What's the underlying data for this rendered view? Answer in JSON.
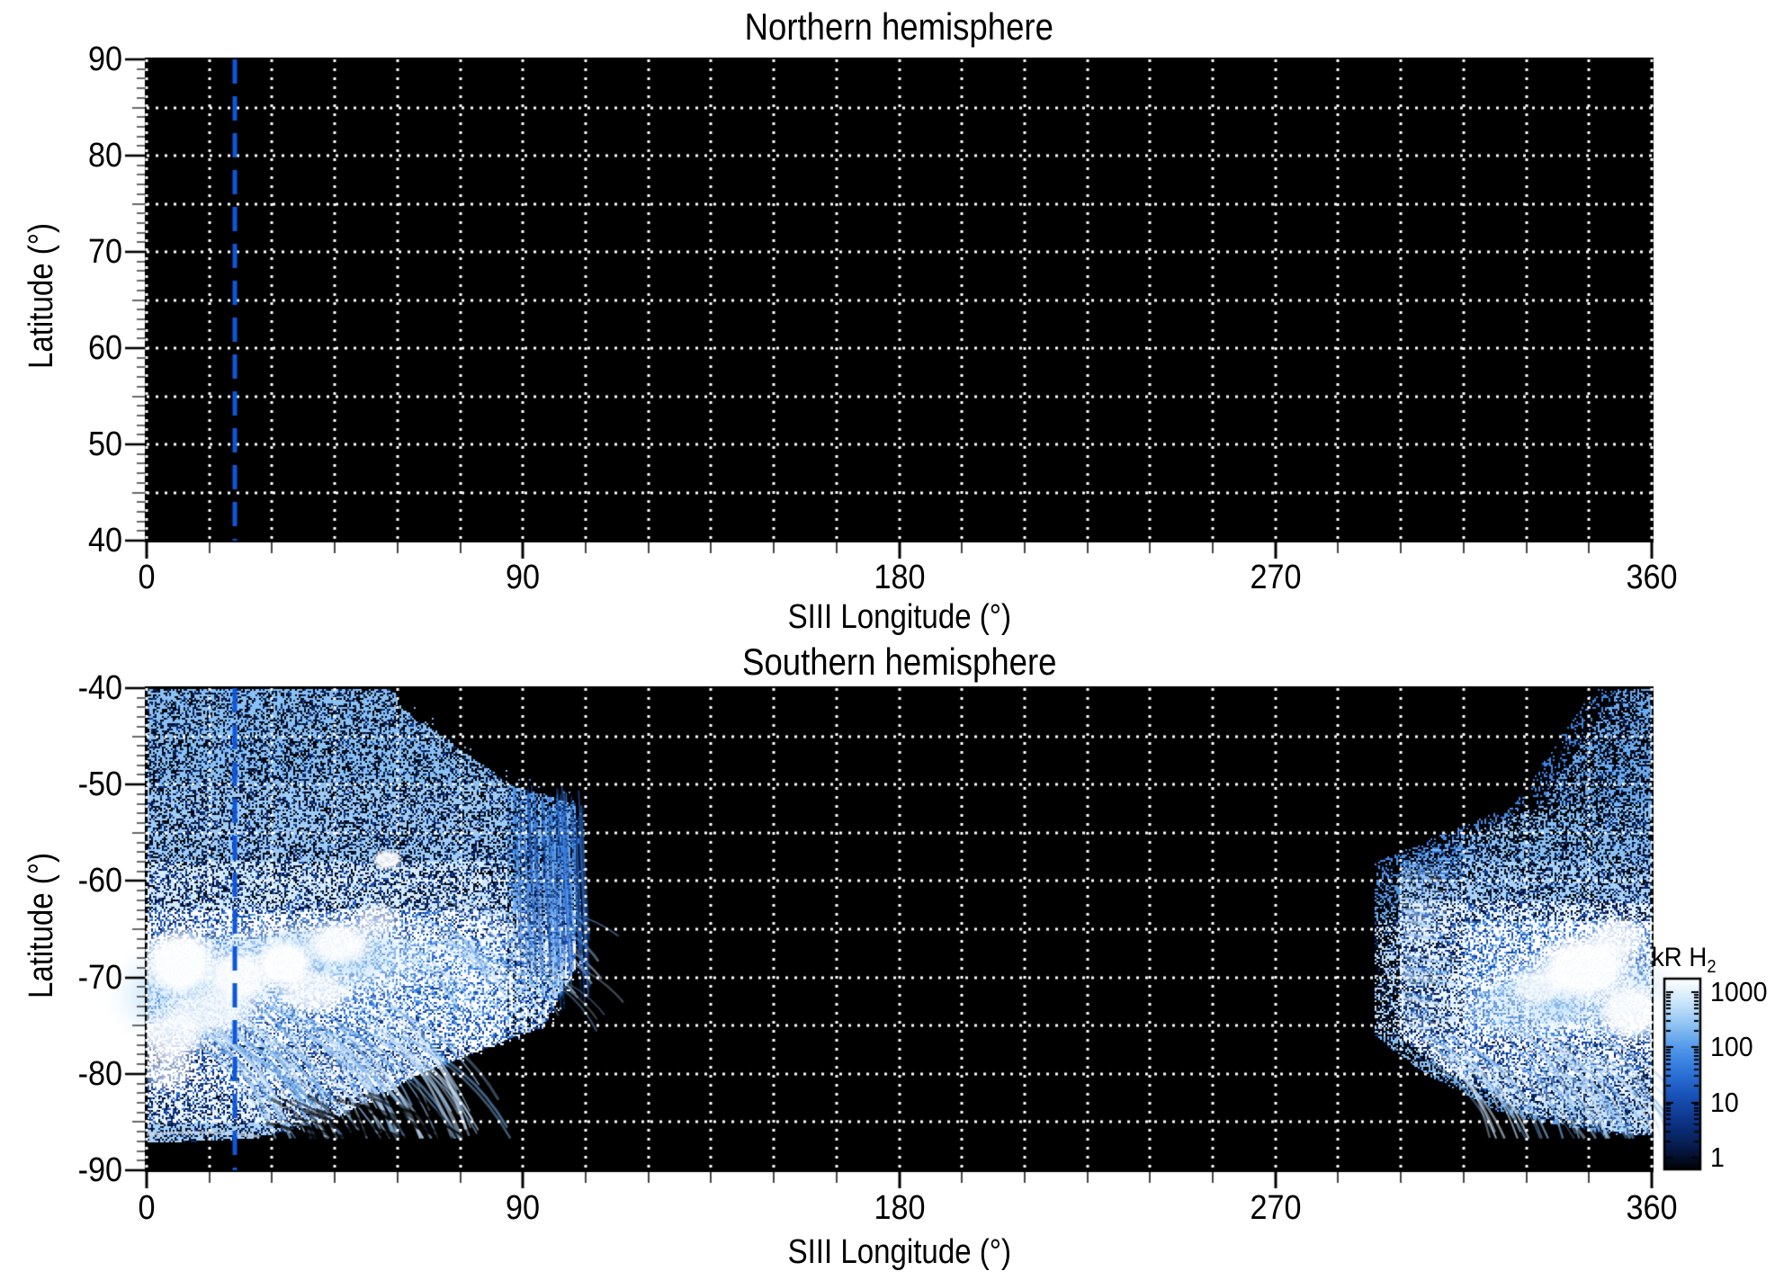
{
  "chart_data": {
    "type": "heatmap",
    "panels": [
      {
        "id": "north",
        "title": "Northern hemisphere",
        "ylabel": "Latitude (°)",
        "xlabel": "SIII Longitude (°)",
        "lat_min": 40,
        "lat_max": 90,
        "yticks": [
          90,
          80,
          70,
          60,
          50,
          40
        ],
        "xticks": [
          0,
          90,
          180,
          270,
          360
        ],
        "has_data": false
      },
      {
        "id": "south",
        "title": "Southern hemisphere",
        "ylabel": "Latitude (°)",
        "xlabel": "SIII Longitude (°)",
        "lat_min": -90,
        "lat_max": -40,
        "yticks": [
          -40,
          -50,
          -60,
          -70,
          -80,
          -90
        ],
        "xticks": [
          0,
          90,
          180,
          270,
          360
        ],
        "has_data": true
      }
    ],
    "lon_min": 0,
    "lon_max": 360,
    "grid": {
      "x_step_deg": 15,
      "y_step_deg": 5,
      "color": "#ffffff",
      "style": "dotted"
    },
    "marker_line": {
      "lon": 21,
      "color": "#0d57d9",
      "style": "dashed"
    },
    "colorbar": {
      "label": "kR H",
      "label_sub": "2",
      "tick_values": [
        1000,
        100,
        10,
        1
      ],
      "scale": "log",
      "top_value": 1000,
      "bottom_value": 1
    },
    "colormap": [
      [
        0.0,
        "#000104"
      ],
      [
        0.12,
        "#061c4e"
      ],
      [
        0.25,
        "#0d3487"
      ],
      [
        0.4,
        "#1a55bb"
      ],
      [
        0.52,
        "#2f76dc"
      ],
      [
        0.64,
        "#5399e9"
      ],
      [
        0.76,
        "#8fc3f3"
      ],
      [
        0.87,
        "#c9e5fb"
      ],
      [
        1.0,
        "#ffffff"
      ]
    ],
    "aurora": {
      "left": {
        "top_edge": [
          [
            0,
            40
          ],
          [
            58,
            40
          ],
          [
            88,
            49
          ],
          [
            105,
            51
          ]
        ],
        "lon_max_by_al": [
          [
            40,
            104.5
          ],
          [
            69,
            104.5
          ],
          [
            75,
            96.7
          ],
          [
            80,
            66.7
          ],
          [
            84.5,
            46.9
          ],
          [
            86.5,
            28.9
          ],
          [
            87,
            11
          ]
        ],
        "al_max": 87,
        "bands": [
          [
            40,
            50,
            0.3
          ],
          [
            50,
            58,
            0.34
          ],
          [
            58,
            63,
            0.45
          ],
          [
            63,
            66,
            0.65
          ],
          [
            66,
            74,
            0.82
          ],
          [
            74,
            77,
            0.72
          ],
          [
            77,
            82,
            0.6
          ],
          [
            82,
            85,
            0.5
          ],
          [
            85,
            87,
            0.36
          ]
        ],
        "glows": [
          [
            30,
            69,
            40,
            5,
            0.45
          ],
          [
            10,
            72,
            22,
            6,
            0.5
          ],
          [
            45,
            67,
            25,
            4,
            0.4
          ]
        ],
        "white_cores": [
          [
            8,
            68.5,
            10,
            4,
            0.95
          ],
          [
            22,
            70,
            9,
            3.2,
            0.9
          ],
          [
            33,
            68.5,
            8,
            3,
            0.95
          ],
          [
            46,
            66.5,
            9,
            2.6,
            0.9
          ],
          [
            57.5,
            57.8,
            4,
            1.2,
            0.9
          ],
          [
            15,
            73.5,
            12,
            2.5,
            0.7
          ],
          [
            40,
            71.5,
            10,
            2.5,
            0.75
          ],
          [
            6,
            76,
            9,
            3,
            0.8
          ],
          [
            5,
            79.5,
            7,
            2.5,
            0.55
          ],
          [
            55,
            64,
            6,
            2,
            0.6
          ]
        ],
        "bottom_arc": {
          "lon0": 0,
          "lon1": 27,
          "al": 86.3
        }
      },
      "right": {
        "lon_min_by_al": [
          [
            40,
            352
          ],
          [
            52,
            333
          ],
          [
            58,
            299.5
          ],
          [
            76,
            299.5
          ],
          [
            80,
            312
          ],
          [
            84,
            330
          ],
          [
            86.3,
            355
          ]
        ],
        "al_max": 86.3,
        "bands": [
          [
            40,
            52,
            0.24
          ],
          [
            52,
            58,
            0.3
          ],
          [
            58,
            62,
            0.36
          ],
          [
            62,
            64,
            0.5
          ],
          [
            64,
            76,
            0.8
          ],
          [
            76,
            80,
            0.6
          ],
          [
            80,
            83,
            0.5
          ],
          [
            83,
            86.3,
            0.42
          ]
        ],
        "streaky_left_of_lon": 315,
        "glows": [
          [
            345,
            71,
            25,
            5,
            0.5
          ],
          [
            330,
            73,
            18,
            4,
            0.4
          ]
        ],
        "white_cores": [
          [
            344,
            69,
            13,
            4,
            0.95
          ],
          [
            355,
            73.5,
            9,
            3.5,
            0.9
          ],
          [
            333,
            71,
            7,
            2.2,
            0.7
          ],
          [
            352,
            66,
            8,
            2.5,
            0.8
          ]
        ]
      }
    }
  }
}
